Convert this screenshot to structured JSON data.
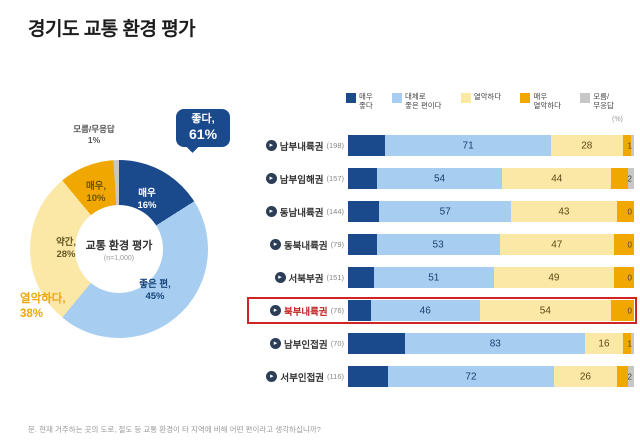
{
  "page_title": "경기도 교통 환경 평가",
  "footnote": "문. 현재 거주하는 곳의 도로, 철도 등 교통 환경이 타 지역에 비해 어떤 편이라고 생각하십니까?",
  "unit_label": "(%)",
  "icons": {
    "row_bullet": "▸"
  },
  "colors": {
    "very_good": "#1a4a8b",
    "good": "#a7cdf0",
    "bad": "#fbe8a6",
    "very_bad": "#f0a800",
    "dk": "#c7c7c7",
    "highlight": "#d02424"
  },
  "donut": {
    "center_title": "교통 환경 평가",
    "center_sub": "(n=1,000)",
    "callout_line1": "좋다,",
    "callout_line2": "61%",
    "label_dk_1": "모름/무응답",
    "label_dk_2": "1%",
    "label_vb_1": "매우,",
    "label_vb_2": "10%",
    "label_vg_1": "매우",
    "label_vg_2": "16%",
    "label_good_1": "좋은 편,",
    "label_good_2": "45%",
    "label_bad_1": "약간,",
    "label_bad_2": "28%",
    "label_badtotal_1": "열악하다,",
    "label_badtotal_2": "38%"
  },
  "legend": {
    "items": [
      {
        "key": "very_good",
        "line1": "매우",
        "line2": "좋다"
      },
      {
        "key": "good",
        "line1": "대체로",
        "line2": "좋은 편이다"
      },
      {
        "key": "bad",
        "line1": "열악하다",
        "line2": ""
      },
      {
        "key": "very_bad",
        "line1": "매우",
        "line2": "열악하다"
      },
      {
        "key": "dk",
        "line1": "모름/",
        "line2": "무응답"
      }
    ]
  },
  "chart_data": [
    {
      "type": "pie",
      "title": "교통 환경 평가",
      "subtitle": "(n=1,000)",
      "labels": [
        "매우 좋다",
        "대체로 좋은 편이다",
        "약간 열악하다",
        "매우 열악하다",
        "모름/무응답"
      ],
      "values": [
        16,
        45,
        28,
        10,
        1
      ],
      "annotations": [
        "좋다 61%",
        "열악하다 38%"
      ]
    },
    {
      "type": "bar",
      "stacked": true,
      "orientation": "horizontal",
      "xlim": [
        0,
        100
      ],
      "unit": "%",
      "legend": [
        "매우 좋다",
        "대체로 좋은 편이다",
        "열악하다",
        "매우 열악하다",
        "모름/무응답"
      ],
      "value_note": "printed values are good-total / bad-total / dont-know",
      "rows": [
        {
          "label": "남부내륙권",
          "n": "(198)",
          "good_total": 71,
          "bad_total": 28,
          "dk": 1,
          "segments_est": [
            13,
            58,
            25,
            3,
            1
          ],
          "highlight": false
        },
        {
          "label": "남부임해권",
          "n": "(157)",
          "good_total": 54,
          "bad_total": 44,
          "dk": 2,
          "segments_est": [
            10,
            44,
            38,
            6,
            2
          ],
          "highlight": false
        },
        {
          "label": "동남내륙권",
          "n": "(144)",
          "good_total": 57,
          "bad_total": 43,
          "dk": 0,
          "segments_est": [
            11,
            46,
            37,
            6,
            0
          ],
          "highlight": false
        },
        {
          "label": "동북내륙권",
          "n": "(79)",
          "good_total": 53,
          "bad_total": 47,
          "dk": 0,
          "segments_est": [
            10,
            43,
            40,
            7,
            0
          ],
          "highlight": false
        },
        {
          "label": "서북부권",
          "n": "(151)",
          "good_total": 51,
          "bad_total": 49,
          "dk": 0,
          "segments_est": [
            9,
            42,
            42,
            7,
            0
          ],
          "highlight": false
        },
        {
          "label": "북부내륙권",
          "n": "(76)",
          "good_total": 46,
          "bad_total": 54,
          "dk": 0,
          "segments_est": [
            8,
            38,
            46,
            8,
            0
          ],
          "highlight": true
        },
        {
          "label": "남부인접권",
          "n": "(70)",
          "good_total": 83,
          "bad_total": 16,
          "dk": 1,
          "segments_est": [
            20,
            63,
            13,
            3,
            1
          ],
          "highlight": false
        },
        {
          "label": "서부인접권",
          "n": "(116)",
          "good_total": 72,
          "bad_total": 26,
          "dk": 2,
          "segments_est": [
            14,
            58,
            22,
            4,
            2
          ],
          "highlight": false
        }
      ]
    }
  ]
}
